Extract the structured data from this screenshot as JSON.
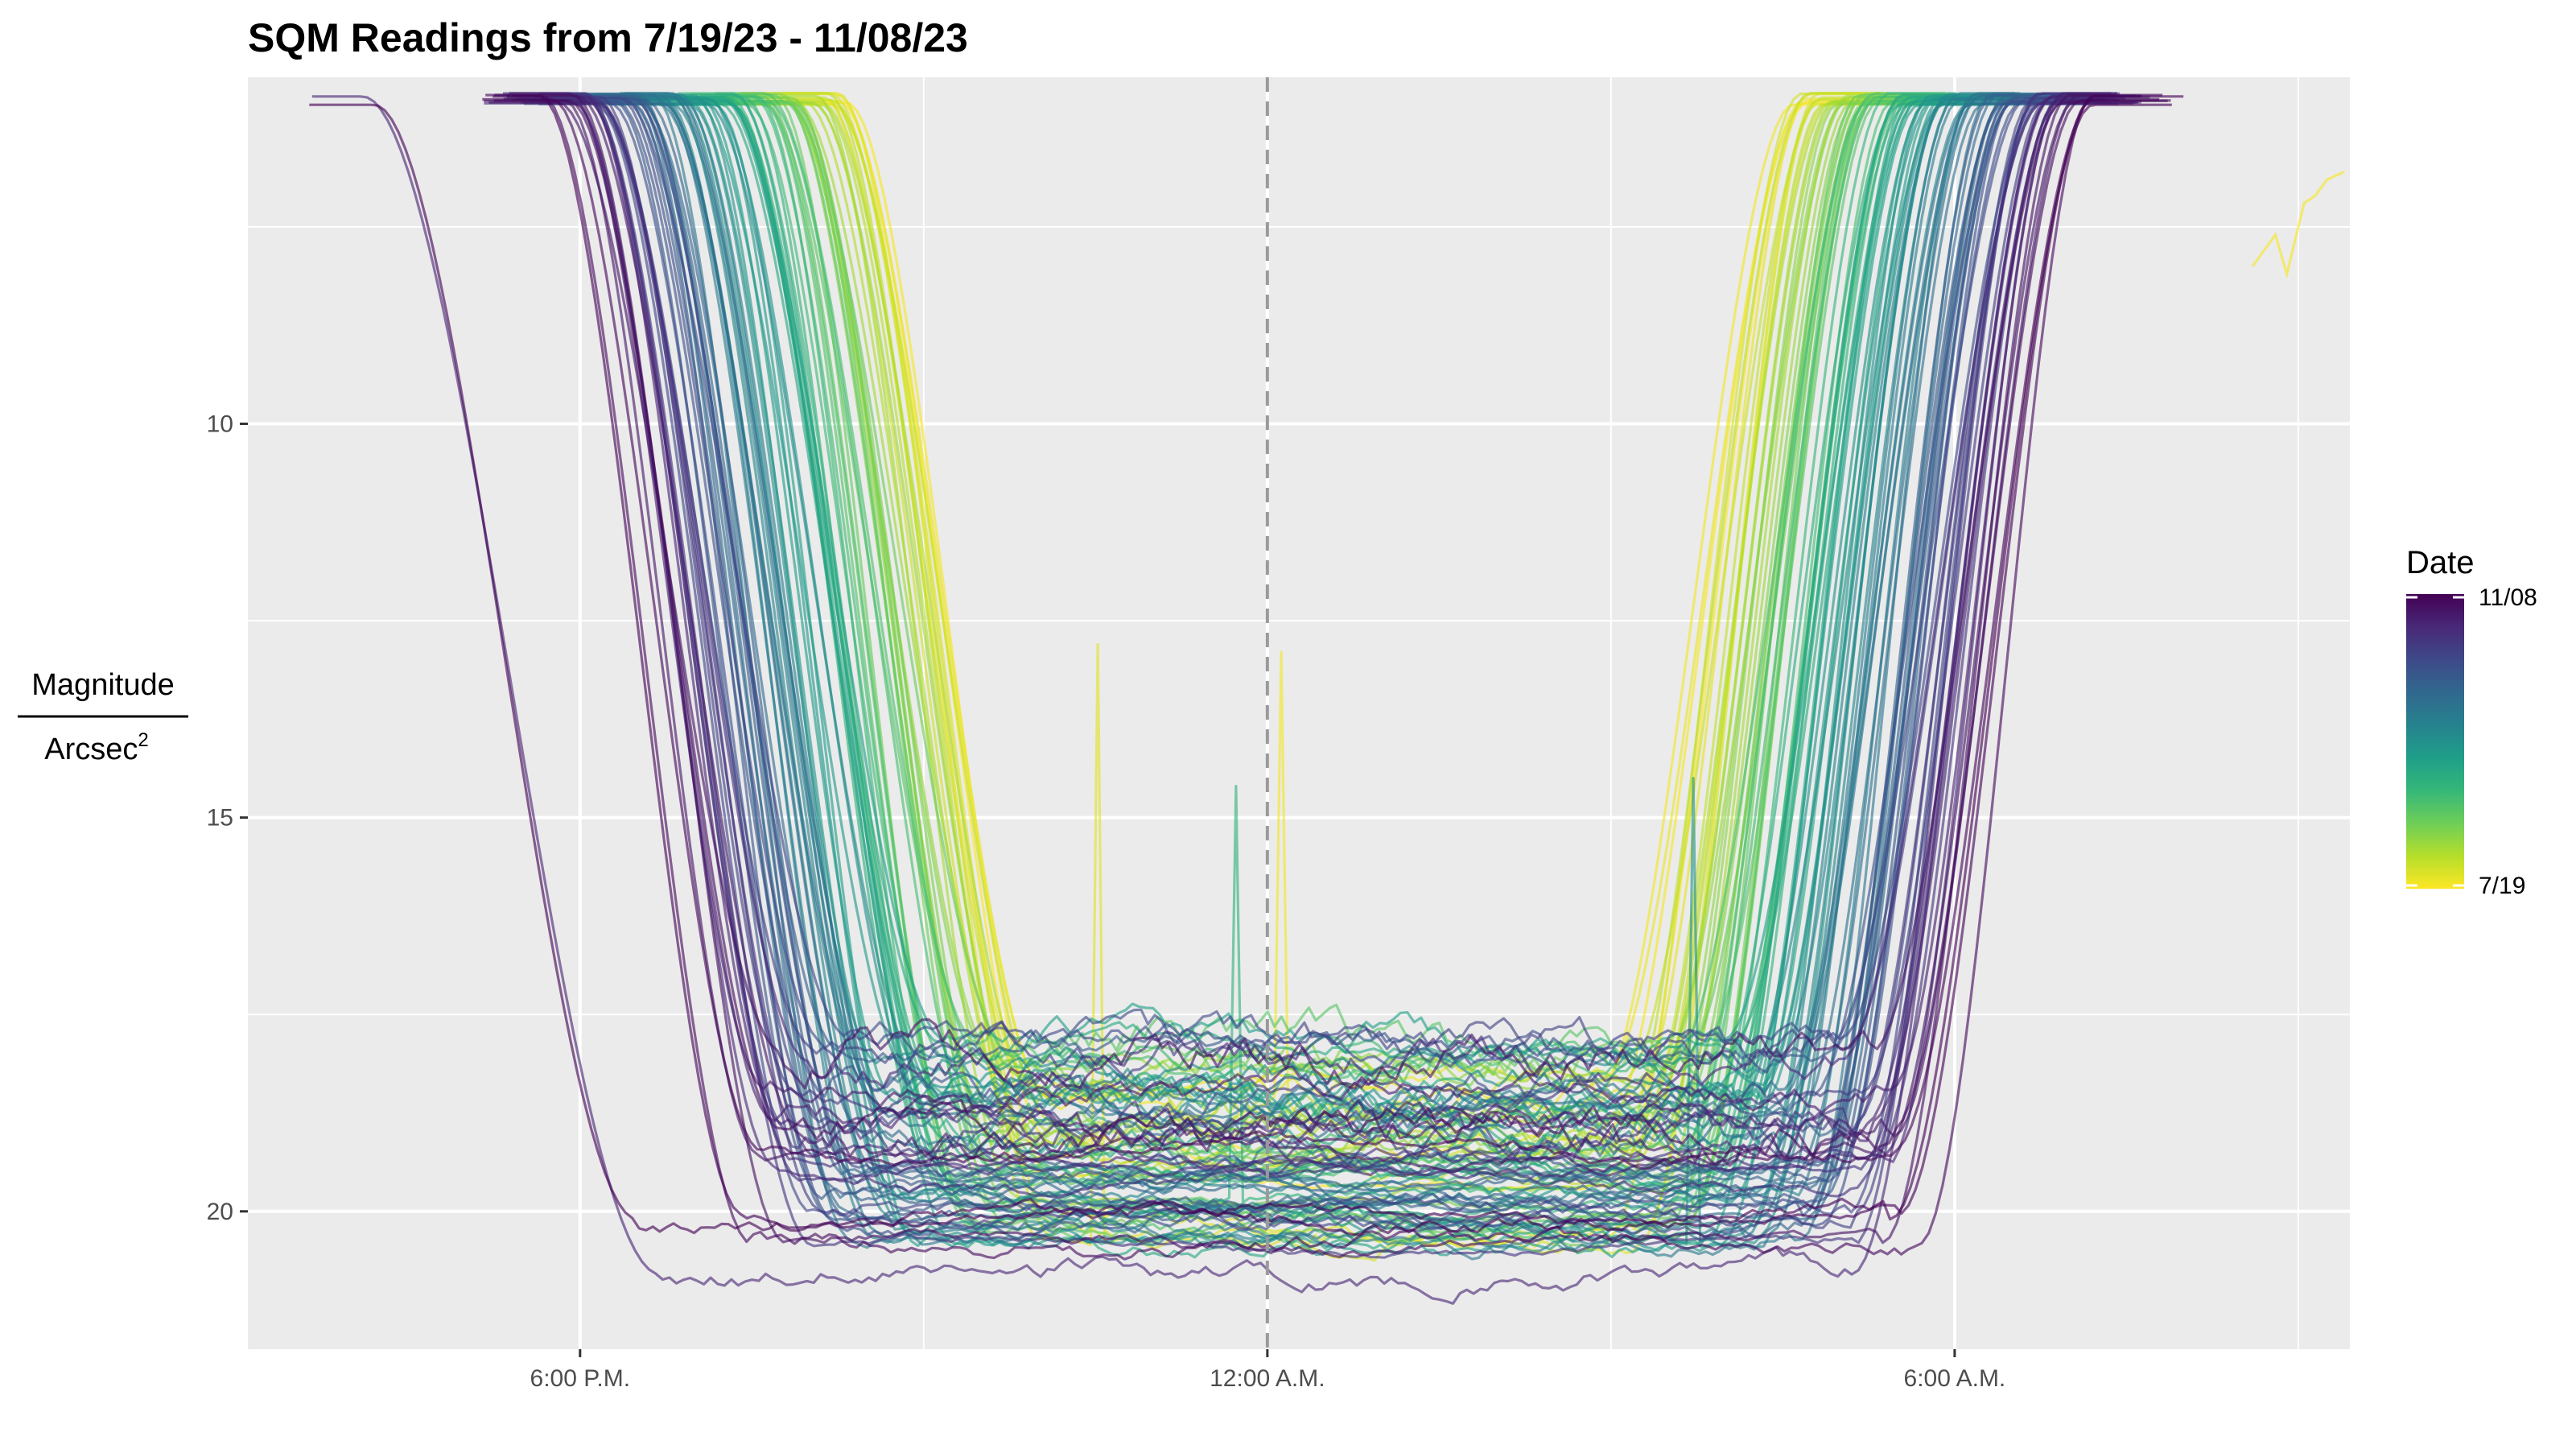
{
  "chart_data": {
    "type": "line",
    "title": "SQM Readings from 7/19/23 - 11/08/23",
    "xlabel": "",
    "ylabel_numerator": "Magnitude",
    "ylabel_denominator": "Arcsec",
    "ylabel_exponent": "2",
    "x_unit": "hours relative to midnight (0 = 12:00 A.M.)",
    "xlim": [
      -8.9,
      9.45
    ],
    "ylim": [
      21.75,
      5.6
    ],
    "y_reversed": true,
    "x_ticks": [
      {
        "value": -6,
        "label": "6:00 P.M."
      },
      {
        "value": 0,
        "label": "12:00 A.M."
      },
      {
        "value": 6,
        "label": "6:00 A.M."
      }
    ],
    "x_minor_ticks": [
      -3,
      3,
      9
    ],
    "y_ticks": [
      {
        "value": 10,
        "label": "10"
      },
      {
        "value": 15,
        "label": "15"
      },
      {
        "value": 20,
        "label": "20"
      }
    ],
    "y_minor_ticks": [
      7.5,
      12.5,
      17.5
    ],
    "midnight_line": 0,
    "grid": true,
    "legend": {
      "title": "Date",
      "type": "colorbar",
      "position": "right",
      "top_label": "11/08",
      "bottom_label": "7/19",
      "colors": [
        "#440154",
        "#482878",
        "#3e4989",
        "#31688e",
        "#26828e",
        "#1f9e89",
        "#35b779",
        "#6ece58",
        "#b5de2b",
        "#fde725"
      ]
    },
    "series_summary": {
      "count": 114,
      "start_date": "7/19",
      "end_date": "11/08",
      "plateau_level_range": [
        17.8,
        20.5
      ],
      "saturated_level": 5.8,
      "evening_drop_hours_first": -3.7,
      "evening_drop_hours_last": -6.3,
      "morning_rise_hours_first": 4.6,
      "morning_rise_hours_last": 7.2
    },
    "annotations": [
      {
        "date_index": 5,
        "x": -1.5,
        "y": 12.8,
        "note": "spike"
      },
      {
        "date_index": 40,
        "x": -0.3,
        "y": 14.6,
        "note": "spike"
      },
      {
        "date_index": 2,
        "x": 0.15,
        "y": 12.9,
        "note": "spike"
      },
      {
        "date_index": 55,
        "x": 3.7,
        "y": 14.5,
        "note": "spike"
      }
    ],
    "outliers": [
      {
        "date_index": 113,
        "type": "early_drop",
        "x_start": -7.8,
        "x_end": -5.5,
        "level": 20.1
      },
      {
        "date_index": 101,
        "type": "early_drop",
        "x_start": -7.9,
        "x_end": -5.3,
        "level": 20.8
      },
      {
        "date_index": 1,
        "type": "dawn_segment",
        "x": [
          8.6,
          8.8,
          8.9,
          9.05,
          9.15,
          9.25,
          9.4
        ],
        "y": [
          8.0,
          7.6,
          8.1,
          7.2,
          7.1,
          6.9,
          6.8
        ]
      }
    ]
  }
}
